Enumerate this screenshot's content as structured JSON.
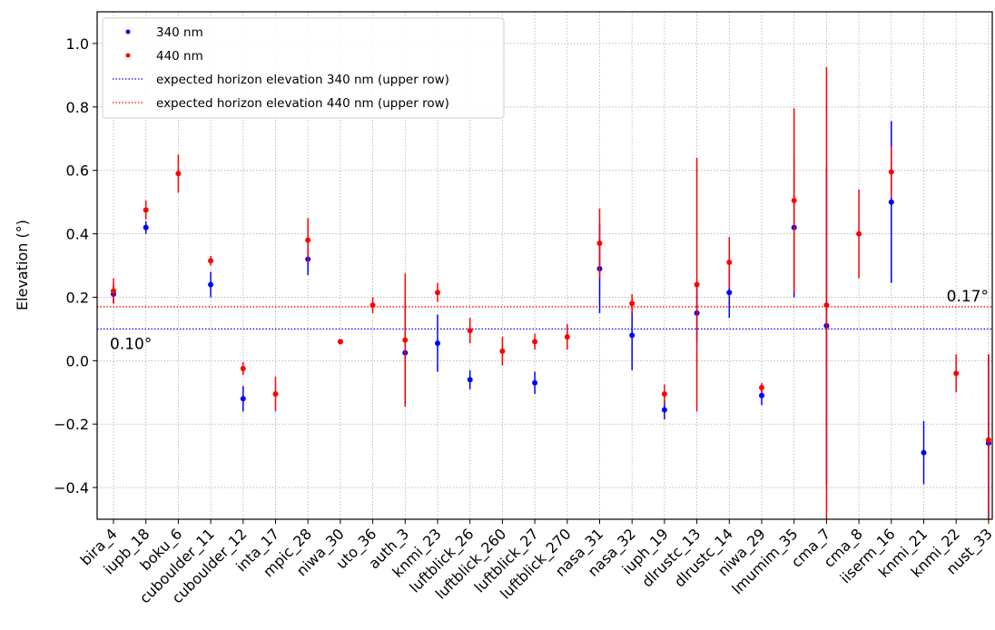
{
  "chart_data": {
    "type": "errorbar-scatter",
    "y_label": "Elevation (°)",
    "categories": [
      "bira_4",
      "iupb_18",
      "boku_6",
      "cuboulder_11",
      "cuboulder_12",
      "inta_17",
      "mpic_28",
      "niwa_30",
      "uto_36",
      "auth_3",
      "knmi_23",
      "luftblick_26",
      "luftblick_260",
      "luftblick_27",
      "luftblick_270",
      "nasa_31",
      "nasa_32",
      "iuph_19",
      "dlrustc_13",
      "dlrustc_14",
      "niwa_29",
      "lmumim_35",
      "cma_7",
      "cma_8",
      "iiserm_16",
      "knmi_21",
      "knmi_22",
      "nust_33"
    ],
    "series": [
      {
        "name": "340 nm",
        "color": "#0000ff",
        "values": [
          0.21,
          0.42,
          null,
          0.24,
          -0.12,
          null,
          0.32,
          0.06,
          null,
          0.025,
          0.055,
          -0.06,
          null,
          -0.07,
          null,
          0.29,
          0.08,
          -0.155,
          0.15,
          0.215,
          -0.11,
          0.42,
          0.11,
          null,
          0.5,
          -0.29,
          null,
          -0.26
        ],
        "errors": [
          0.03,
          0.02,
          null,
          0.04,
          0.04,
          null,
          0.05,
          0.005,
          null,
          0.16,
          0.09,
          0.03,
          null,
          0.035,
          null,
          0.14,
          0.11,
          0.03,
          0.09,
          0.08,
          0.03,
          0.22,
          0.5,
          null,
          0.255,
          0.1,
          null,
          0.28
        ]
      },
      {
        "name": "440 nm",
        "color": "#ff0000",
        "values": [
          0.22,
          0.475,
          0.59,
          0.315,
          -0.025,
          -0.105,
          0.38,
          0.06,
          0.175,
          0.065,
          0.215,
          0.095,
          0.03,
          0.06,
          0.075,
          0.37,
          0.18,
          -0.105,
          0.24,
          0.31,
          -0.085,
          0.505,
          0.175,
          0.4,
          0.595,
          null,
          -0.04,
          -0.25
        ],
        "errors": [
          0.04,
          0.03,
          0.06,
          0.015,
          0.02,
          0.055,
          0.07,
          0.005,
          0.025,
          0.21,
          0.03,
          0.04,
          0.045,
          0.025,
          0.04,
          0.11,
          0.03,
          0.03,
          0.4,
          0.08,
          0.015,
          0.29,
          0.75,
          0.14,
          0.08,
          null,
          0.06,
          0.27
        ]
      }
    ],
    "hlines": [
      {
        "name": "expected horizon elevation 340 nm (upper row)",
        "color": "#0000ff",
        "value": 0.1,
        "label": "0.10°",
        "label_side": "left"
      },
      {
        "name": "expected horizon elevation 440 nm (upper row)",
        "color": "#ff0000",
        "value": 0.17,
        "label": "0.17°",
        "label_side": "right"
      }
    ],
    "ylim": [
      -0.5,
      1.1
    ],
    "yticks": [
      {
        "value": -0.4,
        "label": "−0.4"
      },
      {
        "value": -0.2,
        "label": "−0.2"
      },
      {
        "value": 0,
        "label": "0.0"
      },
      {
        "value": 0.2,
        "label": "0.2"
      },
      {
        "value": 0.4,
        "label": "0.4"
      },
      {
        "value": 0.6,
        "label": "0.6"
      },
      {
        "value": 0.8,
        "label": "0.8"
      },
      {
        "value": 1.0,
        "label": "1.0"
      }
    ],
    "grid": true,
    "legend": "upper-left"
  }
}
